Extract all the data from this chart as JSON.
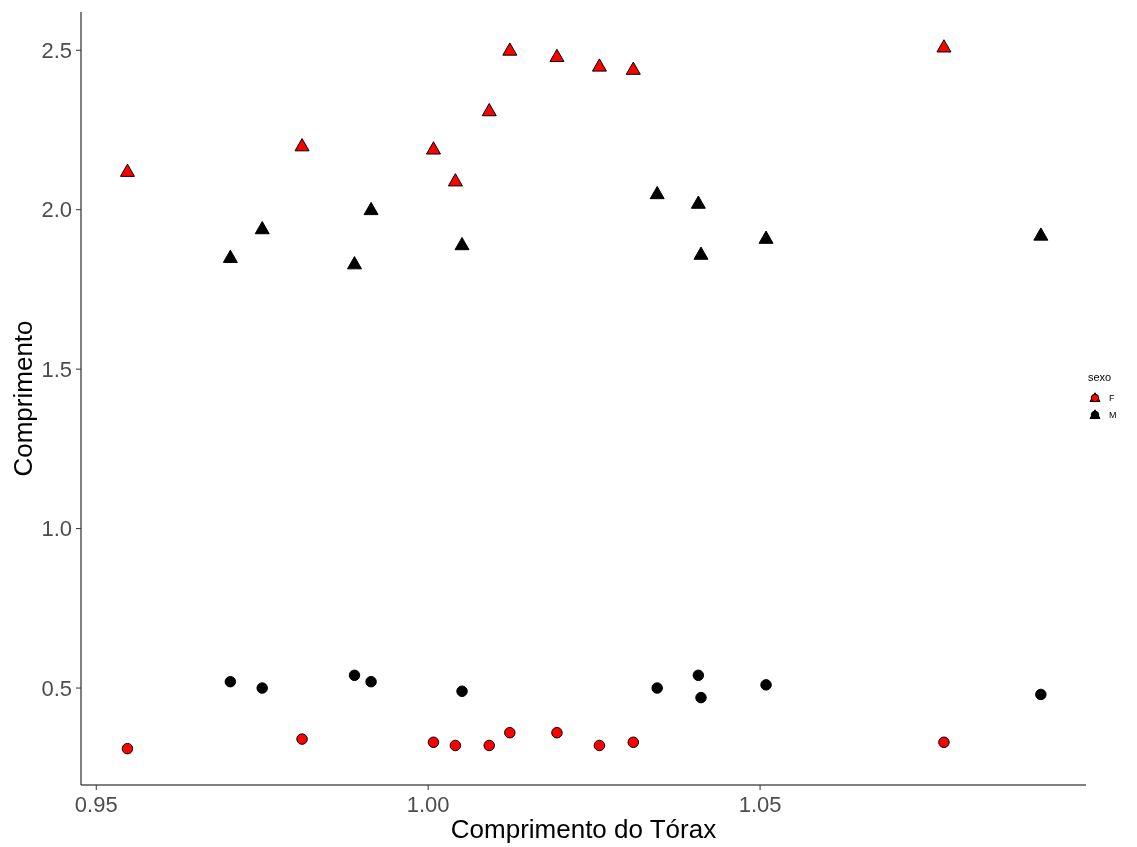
{
  "chart_data": {
    "type": "scatter",
    "xlabel": "Comprimento do Tórax",
    "ylabel": "Comprimento",
    "legend_title": "sexo",
    "legend": "right",
    "grid": false,
    "xlim": [
      0.9477,
      1.0991
    ],
    "xticks": [
      {
        "value": 0.95,
        "label": "0.95"
      },
      {
        "value": 1.0,
        "label": "1.00"
      },
      {
        "value": 1.05,
        "label": "1.05"
      }
    ],
    "ylim": [
      0.196,
      2.62
    ],
    "yticks": [
      {
        "value": 0.5,
        "label": "0.5"
      },
      {
        "value": 1.0,
        "label": "1.0"
      },
      {
        "value": 1.5,
        "label": "1.5"
      },
      {
        "value": 2.0,
        "label": "2.0"
      },
      {
        "value": 2.5,
        "label": "2.5"
      }
    ],
    "series": [
      {
        "name": "F",
        "color": "#ff0000",
        "marker": "triangle",
        "x": [
          0.9547,
          0.981,
          1.0008,
          1.0041,
          1.0092,
          1.0123,
          1.0194,
          1.0258,
          1.0309,
          1.0777
        ],
        "values": [
          2.12,
          2.2,
          2.19,
          2.09,
          2.31,
          2.5,
          2.48,
          2.45,
          2.44,
          2.51
        ]
      },
      {
        "color": "#ff0000",
        "marker": "circle",
        "x": [
          0.9547,
          0.981,
          1.0008,
          1.0041,
          1.0092,
          1.0123,
          1.0194,
          1.0258,
          1.0309,
          1.0777
        ],
        "values": [
          0.31,
          0.34,
          0.33,
          0.32,
          0.32,
          0.36,
          0.36,
          0.32,
          0.33,
          0.33
        ]
      },
      {
        "name": "M",
        "color": "#000000",
        "marker": "triangle",
        "x": [
          0.9702,
          0.975,
          0.9889,
          0.9914,
          1.0051,
          1.0345,
          1.0407,
          1.0411,
          1.0509,
          1.0923
        ],
        "values": [
          1.85,
          1.94,
          1.83,
          2.0,
          1.89,
          2.05,
          2.02,
          1.86,
          1.91,
          1.92
        ]
      },
      {
        "color": "#000000",
        "marker": "circle",
        "x": [
          0.9702,
          0.975,
          0.9889,
          0.9914,
          1.0051,
          1.0345,
          1.0407,
          1.0411,
          1.0509,
          1.0923
        ],
        "values": [
          0.52,
          0.5,
          0.54,
          0.52,
          0.49,
          0.5,
          0.54,
          0.47,
          0.51,
          0.48
        ]
      }
    ]
  }
}
